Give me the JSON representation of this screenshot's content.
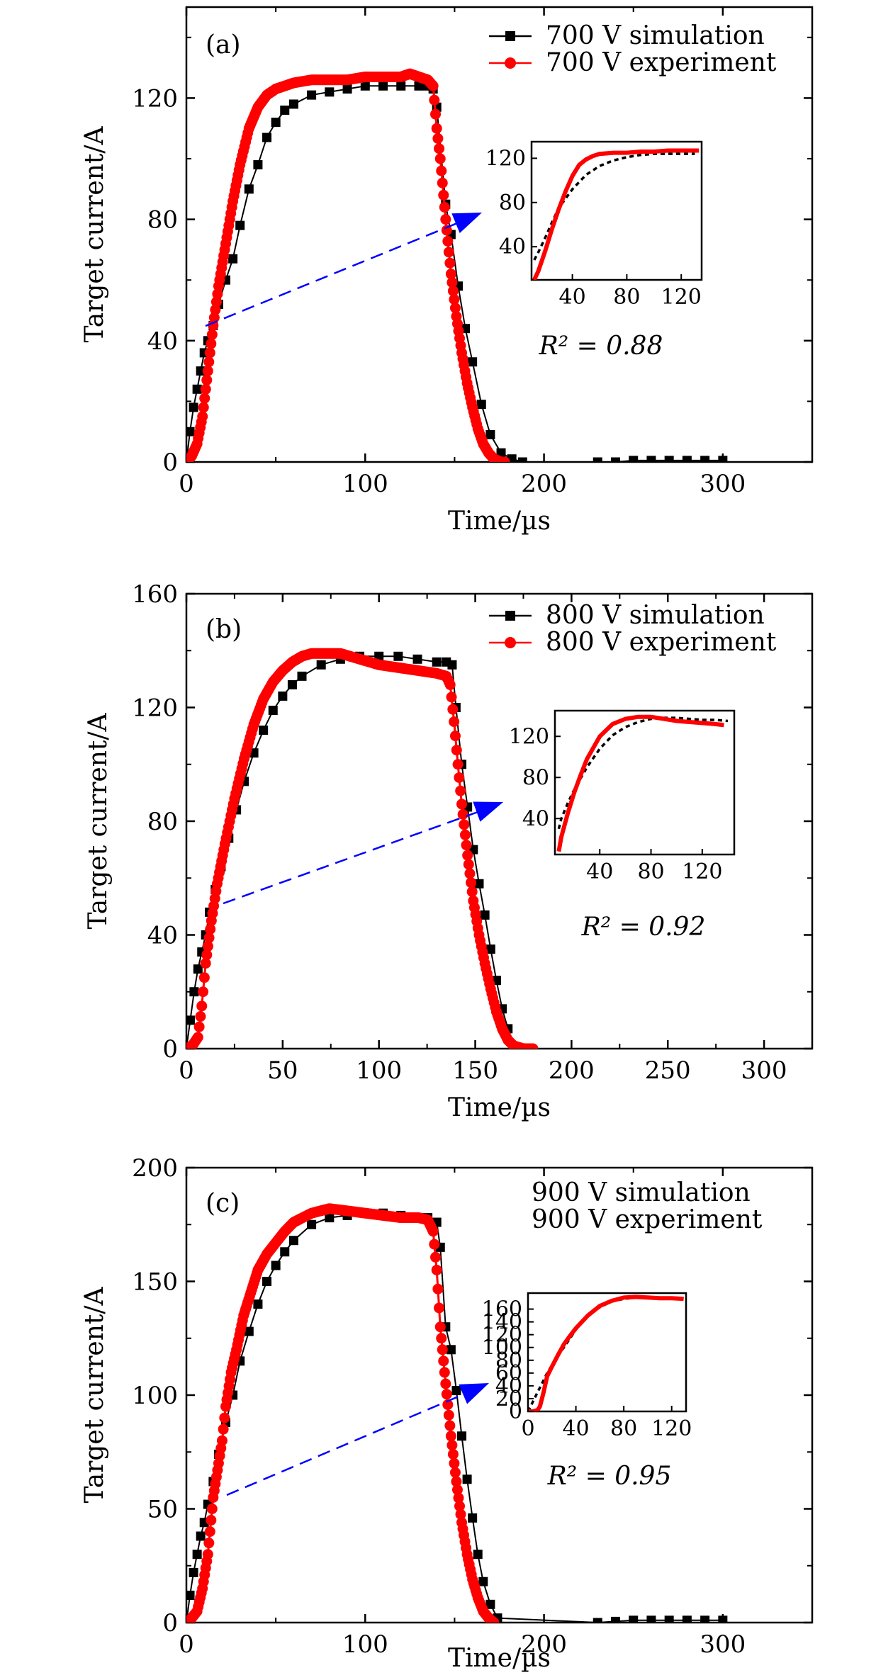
{
  "figure": {
    "type": "multi-panel line/scatter chart",
    "colors": {
      "simulation": "#000000",
      "experiment": "#ff0000",
      "arrow": "#0000ff"
    }
  },
  "chart_data": [
    {
      "type": "line",
      "panel_label": "(a)",
      "xlabel": "Time/µs",
      "ylabel": "Target current/A",
      "xlim": [
        0,
        350
      ],
      "ylim": [
        0,
        150
      ],
      "xticks": [
        "0",
        "100",
        "200",
        "300"
      ],
      "yticks": [
        "0",
        "40",
        "80",
        "120"
      ],
      "legend": {
        "position": "top-right",
        "entries": [
          "700 V simulation",
          "700 V experiment"
        ]
      },
      "series": [
        {
          "name": "700 V simulation",
          "marker": "square",
          "color": "#000000",
          "x": [
            0,
            2,
            4,
            6,
            8,
            10,
            12,
            15,
            18,
            22,
            26,
            30,
            35,
            40,
            45,
            50,
            55,
            60,
            70,
            80,
            90,
            100,
            110,
            120,
            130,
            135,
            138,
            140,
            145,
            148,
            152,
            156,
            160,
            165,
            170,
            176,
            182,
            188,
            230,
            240,
            250,
            260,
            270,
            280,
            290,
            300
          ],
          "y": [
            0,
            10,
            18,
            24,
            30,
            36,
            40,
            45,
            52,
            60,
            67,
            78,
            90,
            98,
            107,
            112,
            116,
            118,
            121,
            122,
            123,
            124,
            124,
            124,
            124,
            124,
            123,
            117,
            85,
            75,
            58,
            44,
            33,
            19,
            9,
            3,
            1,
            0,
            0,
            0,
            0.5,
            0.5,
            0.5,
            0.5,
            0.5,
            0.5
          ]
        },
        {
          "name": "700 V experiment",
          "marker": "circle",
          "color": "#ff0000",
          "x": [
            0,
            3,
            6,
            9,
            12,
            15,
            18,
            22,
            26,
            30,
            35,
            40,
            45,
            50,
            55,
            60,
            70,
            80,
            90,
            100,
            110,
            120,
            125,
            130,
            135,
            138,
            140,
            142,
            145,
            148,
            151,
            154,
            157,
            160,
            163,
            166,
            169,
            172,
            176,
            178
          ],
          "y": [
            0,
            2,
            6,
            15,
            30,
            45,
            58,
            72,
            86,
            98,
            110,
            117,
            121,
            123,
            124,
            125,
            126,
            126,
            126,
            127,
            127,
            127,
            128,
            127,
            126,
            124,
            110,
            100,
            80,
            62,
            48,
            36,
            26,
            18,
            11,
            6,
            3,
            1,
            0,
            0
          ]
        }
      ],
      "inset": {
        "xlim": [
          10,
          135
        ],
        "ylim": [
          10,
          135
        ],
        "xticks": [
          "40",
          "80",
          "120"
        ],
        "yticks": [
          "40",
          "80",
          "120"
        ],
        "r2_label": "R² = 0.88",
        "sim": {
          "x": [
            12,
            15,
            20,
            25,
            30,
            40,
            50,
            60,
            70,
            80,
            90,
            100,
            110,
            120,
            130
          ],
          "y": [
            28,
            35,
            48,
            62,
            75,
            92,
            105,
            113,
            118,
            121,
            123,
            124,
            124,
            124,
            124
          ]
        },
        "exp": {
          "x": [
            12,
            15,
            20,
            25,
            30,
            35,
            40,
            45,
            50,
            55,
            60,
            70,
            80,
            90,
            100,
            110,
            120,
            130,
            133
          ],
          "y": [
            10,
            18,
            36,
            56,
            74,
            90,
            104,
            114,
            119,
            122,
            124,
            125,
            125,
            126,
            126,
            127,
            127,
            127,
            127
          ]
        }
      }
    },
    {
      "type": "line",
      "panel_label": "(b)",
      "xlabel": "Time/µs",
      "ylabel": "Target current/A",
      "xlim": [
        0,
        325
      ],
      "ylim": [
        0,
        160
      ],
      "xticks": [
        "0",
        "50",
        "100",
        "150",
        "200",
        "250",
        "300"
      ],
      "yticks": [
        "0",
        "40",
        "80",
        "120",
        "160"
      ],
      "legend": {
        "position": "top-right",
        "entries": [
          "800 V simulation",
          "800 V experiment"
        ]
      },
      "series": [
        {
          "name": "800 V simulation",
          "marker": "square",
          "color": "#000000",
          "x": [
            0,
            2,
            4,
            6,
            8,
            10,
            12,
            15,
            18,
            22,
            26,
            30,
            35,
            40,
            45,
            50,
            55,
            60,
            70,
            80,
            90,
            100,
            110,
            120,
            130,
            135,
            138,
            140,
            143,
            146,
            149,
            152,
            155,
            158,
            161,
            164,
            167
          ],
          "y": [
            0,
            10,
            20,
            28,
            34,
            40,
            48,
            56,
            64,
            74,
            84,
            94,
            104,
            112,
            119,
            124,
            128,
            131,
            135,
            137,
            138,
            138,
            138,
            137,
            136,
            136,
            135,
            120,
            100,
            85,
            70,
            58,
            47,
            35,
            24,
            14,
            7
          ]
        },
        {
          "name": "800 V experiment",
          "marker": "circle",
          "color": "#ff0000",
          "x": [
            0,
            3,
            6,
            8,
            10,
            13,
            16,
            20,
            25,
            30,
            35,
            40,
            45,
            50,
            55,
            60,
            65,
            70,
            80,
            90,
            100,
            110,
            120,
            130,
            135,
            137,
            139,
            141,
            143,
            146,
            149,
            152,
            155,
            158,
            161,
            164,
            167,
            170,
            175,
            180
          ],
          "y": [
            0,
            1,
            4,
            15,
            30,
            45,
            58,
            72,
            88,
            102,
            114,
            123,
            129,
            133,
            136,
            138,
            139,
            139,
            139,
            137,
            135,
            134,
            133,
            132,
            131,
            128,
            115,
            100,
            86,
            68,
            52,
            40,
            30,
            21,
            13,
            7,
            3,
            1,
            0,
            0
          ]
        }
      ],
      "inset": {
        "xlim": [
          5,
          145
        ],
        "ylim": [
          5,
          145
        ],
        "xticks": [
          "40",
          "80",
          "120"
        ],
        "yticks": [
          "40",
          "80",
          "120"
        ],
        "r2_label": "R² = 0.92",
        "sim": {
          "x": [
            8,
            10,
            15,
            20,
            30,
            40,
            50,
            60,
            70,
            80,
            90,
            100,
            110,
            120,
            130,
            140
          ],
          "y": [
            30,
            40,
            55,
            68,
            90,
            108,
            121,
            129,
            134,
            137,
            138,
            138,
            137,
            136,
            136,
            135
          ]
        },
        "exp": {
          "x": [
            8,
            10,
            15,
            20,
            25,
            30,
            40,
            50,
            60,
            70,
            80,
            90,
            100,
            110,
            120,
            130,
            137
          ],
          "y": [
            8,
            22,
            45,
            65,
            82,
            98,
            120,
            132,
            137,
            139,
            139,
            137,
            135,
            134,
            133,
            132,
            131
          ]
        }
      }
    },
    {
      "type": "line",
      "panel_label": "(c)",
      "xlabel": "Time/µs",
      "ylabel": "Target current/A",
      "xlim": [
        0,
        350
      ],
      "ylim": [
        0,
        200
      ],
      "xticks": [
        "0",
        "100",
        "200",
        "300"
      ],
      "yticks": [
        "0",
        "50",
        "100",
        "150",
        "200"
      ],
      "legend": {
        "position": "top-right",
        "entries": [
          "900 V simulation",
          "900 V experiment"
        ]
      },
      "series": [
        {
          "name": "900 V simulation",
          "marker": "square",
          "color": "#000000",
          "x": [
            0,
            2,
            4,
            6,
            8,
            10,
            12,
            15,
            18,
            22,
            26,
            30,
            35,
            40,
            45,
            50,
            55,
            60,
            70,
            80,
            90,
            100,
            110,
            120,
            130,
            135,
            140,
            142,
            145,
            148,
            151,
            154,
            157,
            160,
            163,
            166,
            170,
            174,
            230,
            240,
            250,
            260,
            270,
            280,
            290,
            300
          ],
          "y": [
            0,
            12,
            22,
            30,
            38,
            44,
            52,
            62,
            74,
            88,
            100,
            115,
            128,
            140,
            150,
            157,
            163,
            168,
            175,
            178,
            179,
            180,
            180,
            179,
            178,
            178,
            176,
            165,
            130,
            120,
            102,
            82,
            63,
            46,
            30,
            18,
            8,
            2,
            0,
            0.5,
            1,
            1,
            1,
            1,
            1,
            1
          ]
        },
        {
          "name": "900 V experiment",
          "marker": "circle",
          "color": "#ff0000",
          "x": [
            0,
            3,
            6,
            9,
            12,
            15,
            18,
            20,
            22,
            25,
            28,
            32,
            36,
            40,
            45,
            50,
            55,
            60,
            70,
            80,
            90,
            100,
            110,
            120,
            130,
            135,
            138,
            140,
            142,
            145,
            148,
            151,
            154,
            157,
            160,
            163,
            166,
            169,
            172
          ],
          "y": [
            0,
            2,
            5,
            15,
            30,
            55,
            70,
            80,
            95,
            110,
            120,
            135,
            145,
            155,
            162,
            167,
            172,
            176,
            180,
            182,
            181,
            180,
            179,
            178,
            178,
            177,
            172,
            155,
            130,
            105,
            82,
            62,
            44,
            30,
            19,
            11,
            5,
            2,
            0
          ]
        }
      ],
      "inset": {
        "xlim": [
          0,
          132
        ],
        "ylim": [
          0,
          185
        ],
        "xticks": [
          "0",
          "40",
          "80",
          "120"
        ],
        "yticks": [
          "0",
          "20",
          "40",
          "60",
          "80",
          "100",
          "120",
          "140",
          "160"
        ],
        "r2_label": "R² = 0.95",
        "sim": {
          "x": [
            0,
            4,
            8,
            12,
            16,
            20,
            25,
            30,
            40,
            50,
            60,
            70,
            80,
            90,
            100,
            110,
            120,
            130
          ],
          "y": [
            0,
            15,
            30,
            45,
            60,
            72,
            88,
            100,
            128,
            150,
            163,
            172,
            176,
            178,
            179,
            178,
            178,
            177
          ]
        },
        "exp": {
          "x": [
            0,
            4,
            8,
            10,
            13,
            16,
            20,
            25,
            30,
            35,
            40,
            50,
            60,
            70,
            80,
            90,
            100,
            110,
            120,
            130
          ],
          "y": [
            0,
            0,
            2,
            8,
            30,
            55,
            70,
            88,
            105,
            118,
            130,
            150,
            165,
            173,
            178,
            179,
            178,
            177,
            177,
            176
          ]
        }
      }
    }
  ]
}
